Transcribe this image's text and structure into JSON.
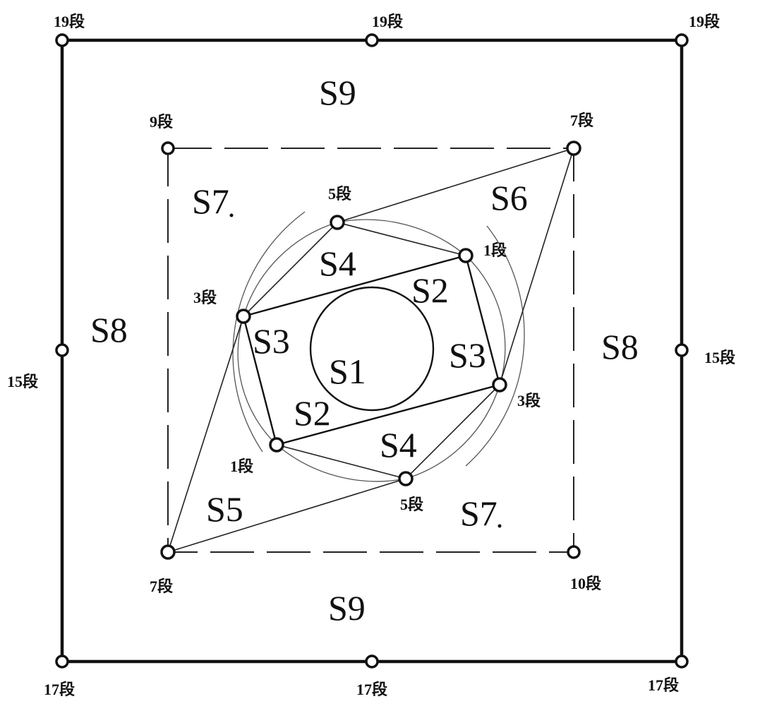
{
  "regions": {
    "s1": "S1",
    "s2_upper": "S2",
    "s2_lower": "S2",
    "s3_left": "S3",
    "s3_right": "S3",
    "s4_upper": "S4",
    "s4_lower": "S4",
    "s5": "S5",
    "s6": "S6",
    "s7_upper_left": "S7",
    "s7_lower_right": "S7",
    "s8_left": "S8",
    "s8_right": "S8",
    "s9_top": "S9",
    "s9_bottom": "S9"
  },
  "holes": {
    "top_left_19": "19段",
    "top_center_19": "19段",
    "top_right_19": "19段",
    "left_15": "15段",
    "right_15": "15段",
    "bottom_left_17": "17段",
    "bottom_center_17": "17段",
    "bottom_right_17": "17段",
    "upper_left_9": "9段",
    "upper_right_7": "7段",
    "lower_left_7": "7段",
    "lower_right_10": "10段",
    "upper_5": "5段",
    "upper_1": "1段",
    "left_3": "3段",
    "right_3": "3段",
    "lower_1": "1段",
    "lower_5": "5段"
  }
}
